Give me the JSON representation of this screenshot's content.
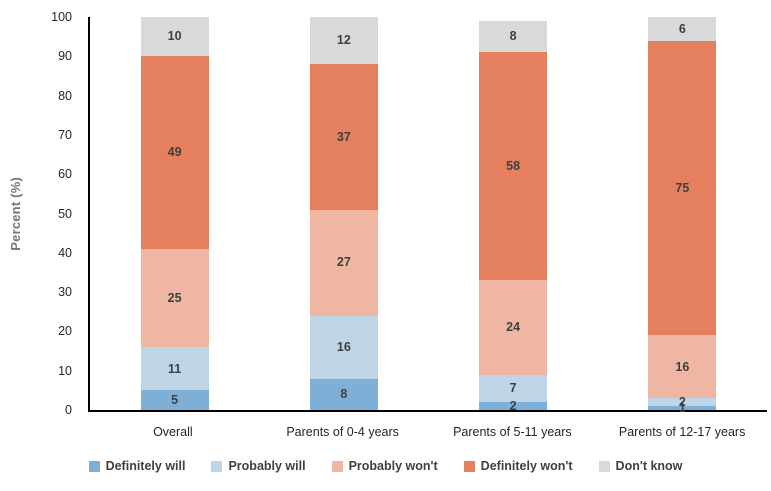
{
  "chart_data": {
    "type": "bar",
    "subtype": "stacked-vertical",
    "title": "",
    "xlabel": "",
    "ylabel": "Percent (%)",
    "ylim": [
      0,
      100
    ],
    "yticks": [
      0,
      10,
      20,
      30,
      40,
      50,
      60,
      70,
      80,
      90,
      100
    ],
    "grid": false,
    "legend_position": "bottom",
    "categories": [
      "Overall",
      "Parents of 0-4 years",
      "Parents of 5-11 years",
      "Parents of 12-17 years"
    ],
    "series": [
      {
        "name": "Definitely will",
        "color": "#7EB0D7",
        "values": [
          5,
          8,
          2,
          1
        ]
      },
      {
        "name": "Probably will",
        "color": "#BED5E8",
        "values": [
          11,
          16,
          7,
          2
        ]
      },
      {
        "name": "Probably won't",
        "color": "#EEB6A3",
        "values": [
          25,
          27,
          24,
          16
        ]
      },
      {
        "name": "Definitely won't",
        "color": "#E5805F",
        "values": [
          49,
          37,
          58,
          75
        ]
      },
      {
        "name": "Don't know",
        "color": "#D9D9D9",
        "values": [
          10,
          12,
          8,
          6
        ]
      }
    ],
    "colors": {
      "axis_line": "#000000",
      "tick_text": "#262626",
      "data_label_text": "#3f3f3f",
      "y_title_text": "#767676",
      "legend_text": "#404040"
    }
  }
}
